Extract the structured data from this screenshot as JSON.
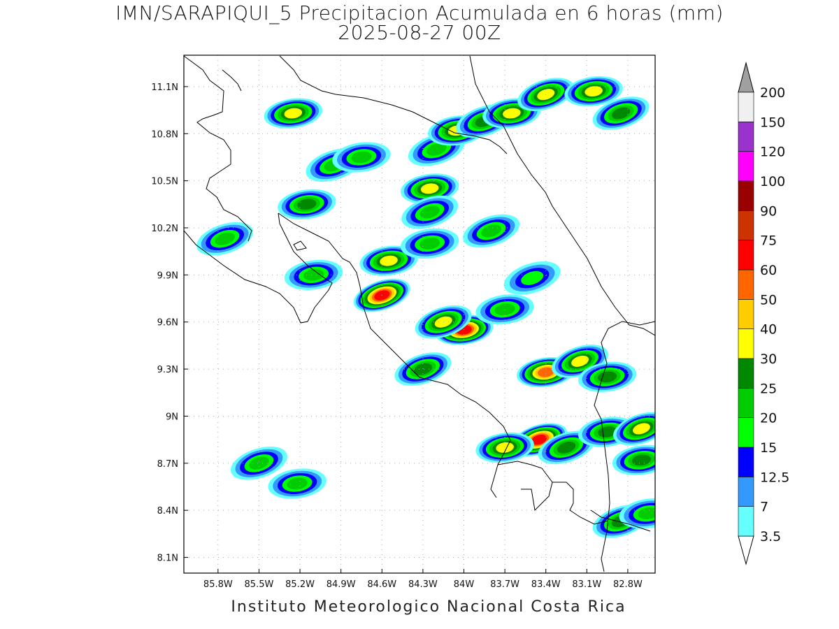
{
  "title": "IMN/SARAPIQUI_5 Precipitacion Acumulada en 6 horas (mm)",
  "subtitle": "2025-08-27 00Z",
  "footer": "Instituto Meteorologico Nacional Costa Rica",
  "map": {
    "lon_range": [
      -86.05,
      -82.6
    ],
    "lat_range": [
      8.0,
      11.3
    ],
    "lat_ticks": [
      {
        "value": 11.1,
        "label": "11.1N"
      },
      {
        "value": 10.8,
        "label": "10.8N"
      },
      {
        "value": 10.5,
        "label": "10.5N"
      },
      {
        "value": 10.2,
        "label": "10.2N"
      },
      {
        "value": 9.9,
        "label": "9.9N"
      },
      {
        "value": 9.6,
        "label": "9.6N"
      },
      {
        "value": 9.3,
        "label": "9.3N"
      },
      {
        "value": 9.0,
        "label": "9N"
      },
      {
        "value": 8.7,
        "label": "8.7N"
      },
      {
        "value": 8.4,
        "label": "8.4N"
      },
      {
        "value": 8.1,
        "label": "8.1N"
      }
    ],
    "lon_ticks": [
      {
        "value": -85.8,
        "label": "85.8W"
      },
      {
        "value": -85.5,
        "label": "85.5W"
      },
      {
        "value": -85.2,
        "label": "85.2W"
      },
      {
        "value": -84.9,
        "label": "84.9W"
      },
      {
        "value": -84.6,
        "label": "84.6W"
      },
      {
        "value": -84.3,
        "label": "84.3W"
      },
      {
        "value": -84.0,
        "label": "84W"
      },
      {
        "value": -83.7,
        "label": "83.7W"
      },
      {
        "value": -83.4,
        "label": "83.4W"
      },
      {
        "value": -83.1,
        "label": "83.1W"
      },
      {
        "value": -82.8,
        "label": "82.8W"
      }
    ],
    "grid": true
  },
  "legend": {
    "bins": [
      {
        "value": "3.5",
        "color": "#66ffff"
      },
      {
        "value": "7",
        "color": "#3399ff"
      },
      {
        "value": "12.5",
        "color": "#0000ff"
      },
      {
        "value": "15",
        "color": "#00ff00"
      },
      {
        "value": "20",
        "color": "#00cc00"
      },
      {
        "value": "25",
        "color": "#008800"
      },
      {
        "value": "30",
        "color": "#ffff00"
      },
      {
        "value": "40",
        "color": "#ffcc00"
      },
      {
        "value": "50",
        "color": "#ff6600"
      },
      {
        "value": "60",
        "color": "#ff0000"
      },
      {
        "value": "75",
        "color": "#cc3300"
      },
      {
        "value": "90",
        "color": "#990000"
      },
      {
        "value": "100",
        "color": "#ff00ff"
      },
      {
        "value": "120",
        "color": "#9933cc"
      },
      {
        "value": "150",
        "color": "#f0f0f0"
      },
      {
        "value": "200",
        "color": "#a0a0a0"
      }
    ]
  },
  "rain_cells": [
    {
      "lon": -85.25,
      "lat": 10.93,
      "peak": 7
    },
    {
      "lon": -84.95,
      "lat": 10.6,
      "peak": 5
    },
    {
      "lon": -84.75,
      "lat": 10.65,
      "peak": 5
    },
    {
      "lon": -84.2,
      "lat": 10.7,
      "peak": 5
    },
    {
      "lon": -84.05,
      "lat": 10.82,
      "peak": 7
    },
    {
      "lon": -83.85,
      "lat": 10.88,
      "peak": 6
    },
    {
      "lon": -83.65,
      "lat": 10.93,
      "peak": 7
    },
    {
      "lon": -83.4,
      "lat": 11.05,
      "peak": 7
    },
    {
      "lon": -83.05,
      "lat": 11.07,
      "peak": 7
    },
    {
      "lon": -82.85,
      "lat": 10.93,
      "peak": 6
    },
    {
      "lon": -84.25,
      "lat": 10.45,
      "peak": 7
    },
    {
      "lon": -84.25,
      "lat": 10.3,
      "peak": 5
    },
    {
      "lon": -85.15,
      "lat": 10.35,
      "peak": 6
    },
    {
      "lon": -85.75,
      "lat": 10.13,
      "peak": 5
    },
    {
      "lon": -84.55,
      "lat": 9.99,
      "peak": 7
    },
    {
      "lon": -84.6,
      "lat": 9.77,
      "peak": 10
    },
    {
      "lon": -84.25,
      "lat": 10.1,
      "peak": 5
    },
    {
      "lon": -83.8,
      "lat": 10.18,
      "peak": 5
    },
    {
      "lon": -85.1,
      "lat": 9.9,
      "peak": 5
    },
    {
      "lon": -83.5,
      "lat": 9.88,
      "peak": 4
    },
    {
      "lon": -84.0,
      "lat": 9.55,
      "peak": 10
    },
    {
      "lon": -84.15,
      "lat": 9.6,
      "peak": 7
    },
    {
      "lon": -83.7,
      "lat": 9.68,
      "peak": 5
    },
    {
      "lon": -84.3,
      "lat": 9.3,
      "peak": 6
    },
    {
      "lon": -83.4,
      "lat": 9.28,
      "peak": 9
    },
    {
      "lon": -83.15,
      "lat": 9.35,
      "peak": 7
    },
    {
      "lon": -82.95,
      "lat": 9.25,
      "peak": 6
    },
    {
      "lon": -83.45,
      "lat": 8.85,
      "peak": 10
    },
    {
      "lon": -83.7,
      "lat": 8.8,
      "peak": 7
    },
    {
      "lon": -83.25,
      "lat": 8.8,
      "peak": 6
    },
    {
      "lon": -82.95,
      "lat": 8.9,
      "peak": 6
    },
    {
      "lon": -82.7,
      "lat": 8.92,
      "peak": 7
    },
    {
      "lon": -82.7,
      "lat": 8.72,
      "peak": 6
    },
    {
      "lon": -85.5,
      "lat": 8.7,
      "peak": 5
    },
    {
      "lon": -85.22,
      "lat": 8.57,
      "peak": 5
    },
    {
      "lon": -82.85,
      "lat": 8.33,
      "peak": 6
    },
    {
      "lon": -82.65,
      "lat": 8.38,
      "peak": 5
    }
  ]
}
